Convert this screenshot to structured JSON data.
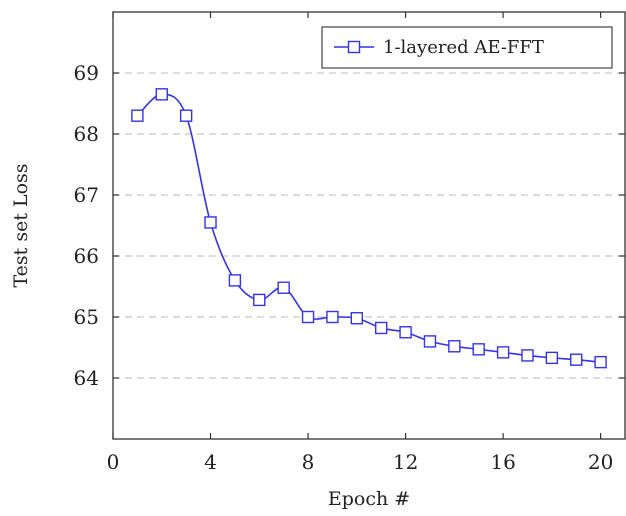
{
  "chart_data": {
    "type": "line",
    "title": "",
    "xlabel": "Epoch #",
    "ylabel": "Test set Loss",
    "xlim": [
      0,
      21
    ],
    "ylim": [
      63,
      70
    ],
    "xticks": [
      "0",
      "4",
      "8",
      "12",
      "16",
      "20"
    ],
    "yticks": [
      "64",
      "65",
      "66",
      "67",
      "68",
      "69"
    ],
    "grid": "horizontal dashed",
    "legend_position": "top-right",
    "marker": "square",
    "smooth": true,
    "colors": {
      "series": "#3434e6",
      "grid": "#c8c8c8",
      "axis": "#333333"
    },
    "series": [
      {
        "name": "1-layered AE-FFT",
        "x": [
          1,
          2,
          3,
          4,
          5,
          6,
          7,
          8,
          9,
          10,
          11,
          12,
          13,
          14,
          15,
          16,
          17,
          18,
          19,
          20
        ],
        "y": [
          68.3,
          68.65,
          68.3,
          66.55,
          65.6,
          65.28,
          65.48,
          65.0,
          65.0,
          64.98,
          64.82,
          64.75,
          64.6,
          64.52,
          64.47,
          64.42,
          64.37,
          64.33,
          64.3,
          64.26
        ]
      }
    ]
  }
}
